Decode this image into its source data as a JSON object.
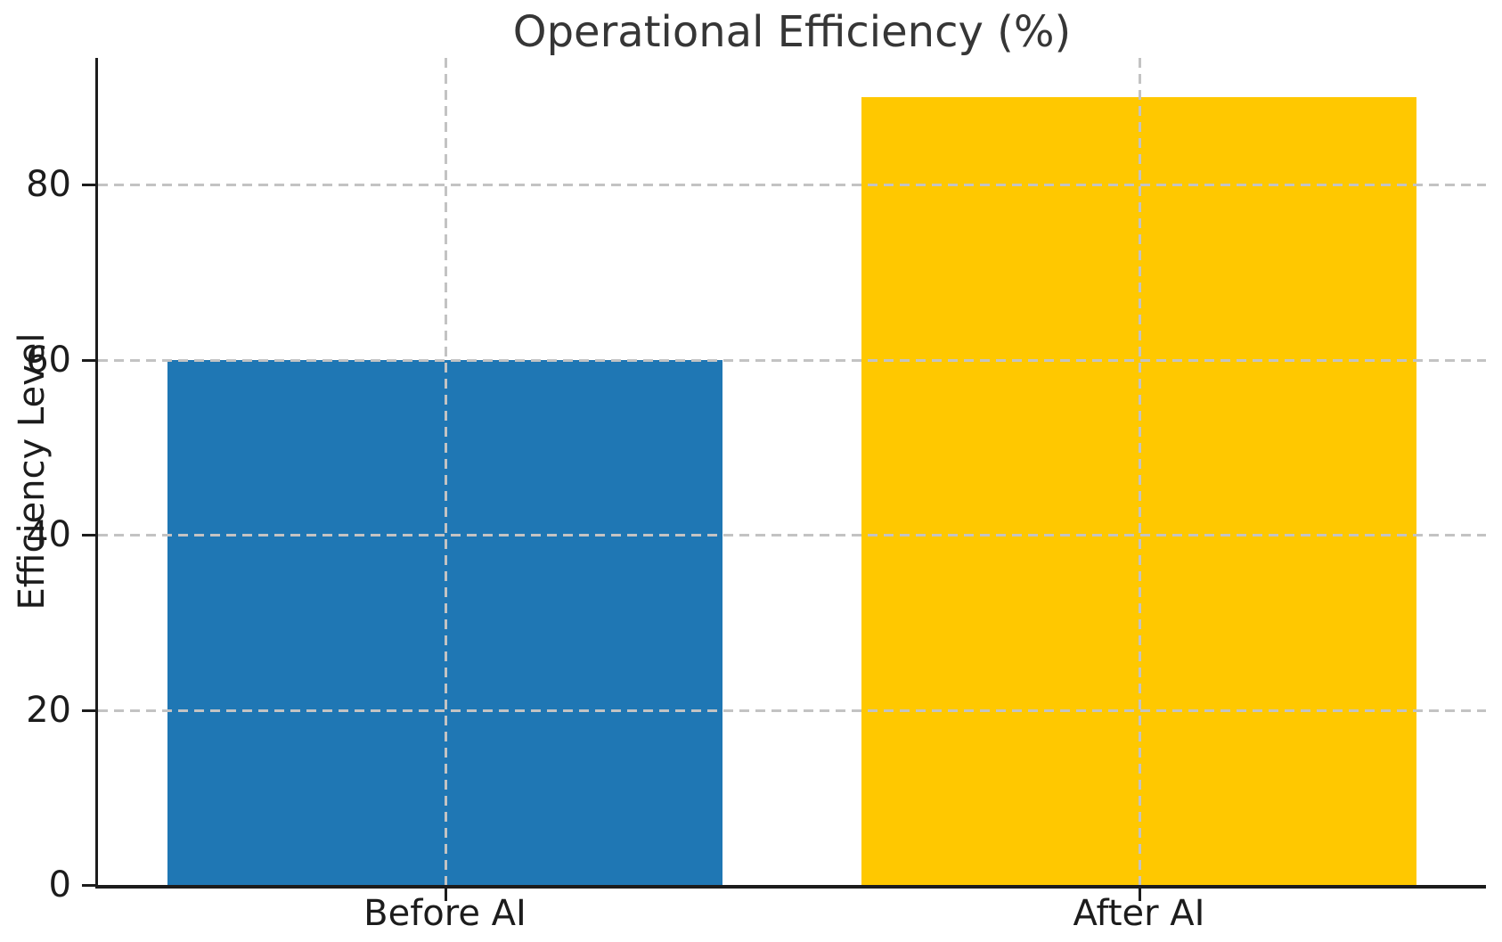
{
  "chart_data": {
    "type": "bar",
    "title": "Operational Efficiency (%)",
    "xlabel": "",
    "ylabel": "Efficiency Level",
    "categories": [
      "Before AI",
      "After AI"
    ],
    "values": [
      60,
      90
    ],
    "bar_colors": [
      "#1f77b4",
      "#ffc800"
    ],
    "yticks": [
      0,
      20,
      40,
      60,
      80
    ],
    "ylim": [
      0,
      94.5
    ],
    "bar_width_fraction": 0.8,
    "grid": "dashed gridlines on both axes, drawn above bars",
    "legend": "none",
    "colors": {
      "grid": "#c3c3c3",
      "spine": "#1c1c1c",
      "tick_text": "#1c1c1c",
      "title_text": "#363636",
      "background": "#ffffff"
    }
  }
}
